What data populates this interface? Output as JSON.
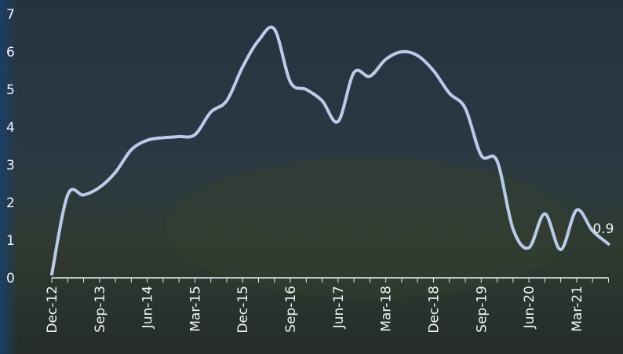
{
  "chart_data": {
    "type": "line",
    "categories": [
      "Dec-12",
      null,
      null,
      "Sep-13",
      null,
      null,
      "Jun-14",
      null,
      null,
      "Mar-15",
      null,
      null,
      "Dec-15",
      null,
      null,
      "Sep-16",
      null,
      null,
      "Jun-17",
      null,
      null,
      "Mar-18",
      null,
      null,
      "Dec-18",
      null,
      null,
      "Sep-19",
      null,
      null,
      "Jun-20",
      null,
      null,
      "Mar-21",
      null,
      null
    ],
    "series": [
      {
        "color": "#bccbe8",
        "values": [
          0.1,
          2.2,
          2.2,
          2.4,
          2.8,
          3.4,
          3.65,
          3.72,
          3.75,
          3.8,
          4.4,
          4.7,
          5.6,
          6.3,
          6.6,
          5.2,
          5.0,
          4.7,
          4.15,
          5.45,
          5.35,
          5.8,
          6.0,
          5.9,
          5.5,
          4.9,
          4.5,
          3.25,
          3.1,
          1.3,
          0.8,
          1.7,
          0.75,
          1.8,
          1.25,
          0.9
        ]
      }
    ],
    "ylim": [
      0,
      7
    ],
    "yticks": [
      0,
      1,
      2,
      3,
      4,
      5,
      6,
      7
    ],
    "grid": false
  }
}
